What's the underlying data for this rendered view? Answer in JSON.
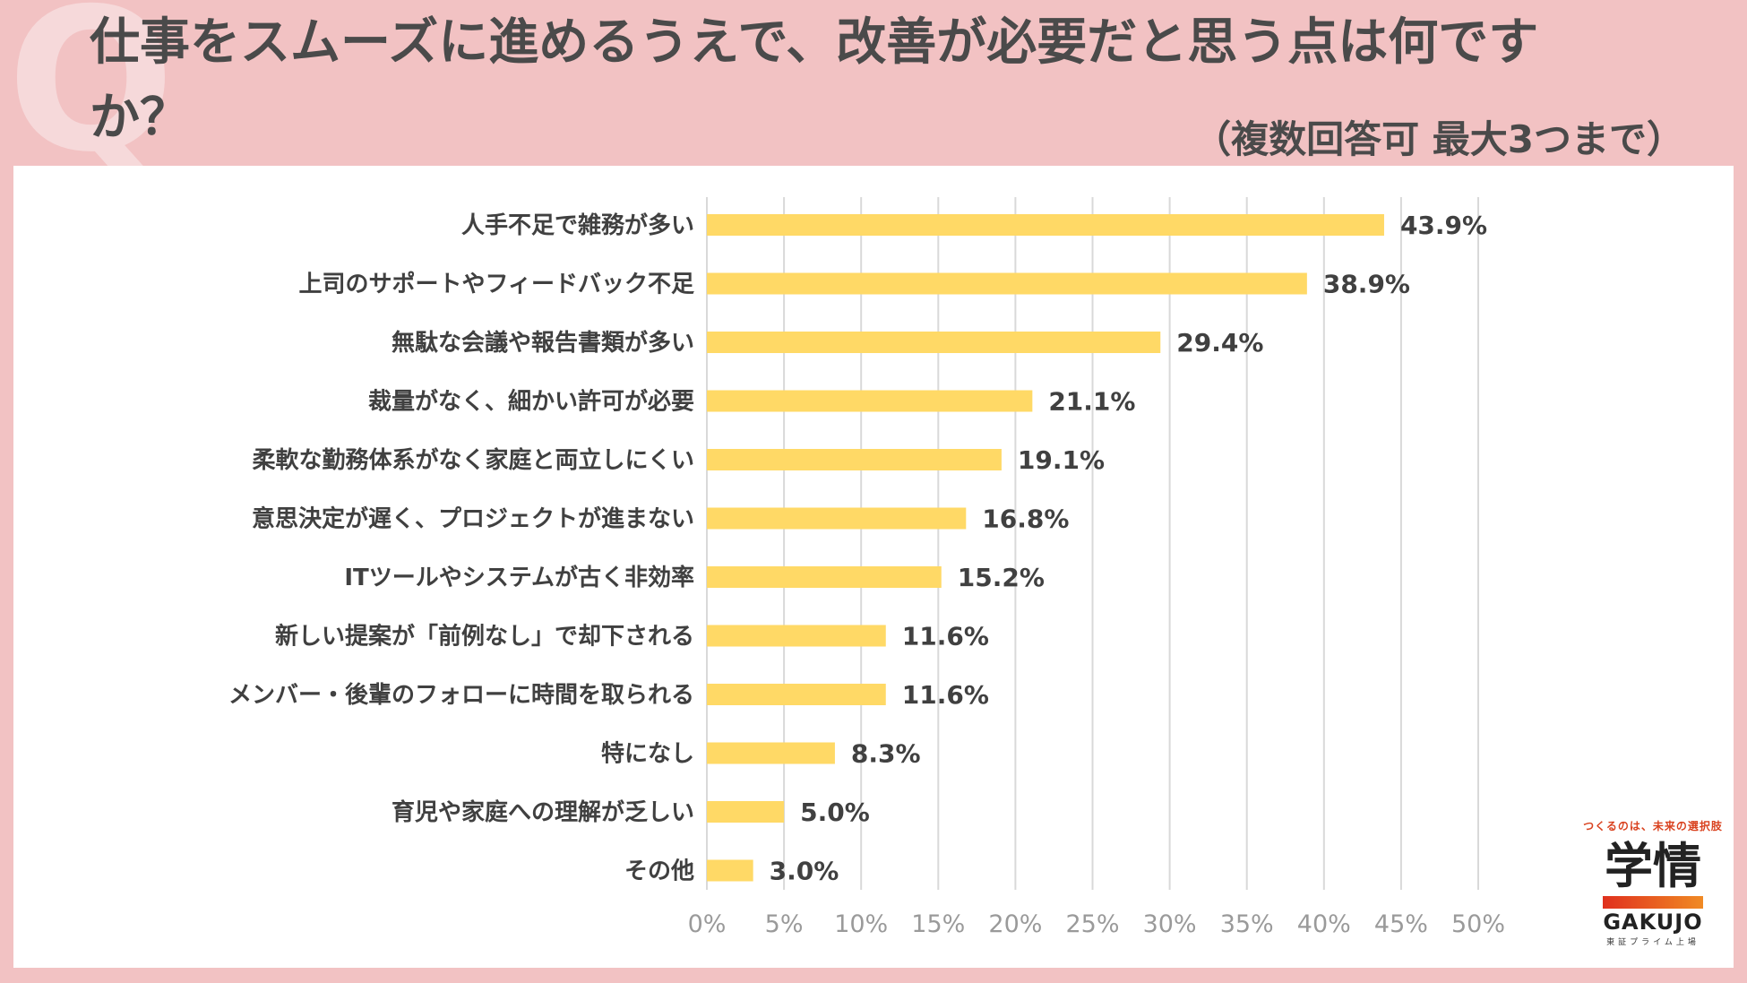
{
  "page": {
    "title": "仕事をスムーズに進めるうえで、改善が必要だと思う点は何ですか？",
    "subtitle": "（複数回答可 最大3つまで）",
    "q_mark": "Q"
  },
  "logo": {
    "tagline": "つくるのは、未来の選択肢",
    "name_jp": "学情",
    "name_en": "GAKUJO",
    "listing": "東証プライム上場"
  },
  "colors": {
    "background": "#f2c2c3",
    "bar": "#ffd966",
    "grid": "#d9d9d9"
  },
  "chart_data": {
    "type": "bar",
    "orientation": "horizontal",
    "title": "",
    "xlabel": "",
    "ylabel": "",
    "xlim": [
      0,
      50
    ],
    "tick_step": 5,
    "tick_suffix": "%",
    "grid": true,
    "categories": [
      "人手不足で雑務が多い",
      "上司のサポートやフィードバック不足",
      "無駄な会議や報告書類が多い",
      "裁量がなく、細かい許可が必要",
      "柔軟な勤務体系がなく家庭と両立しにくい",
      "意思決定が遅く、プロジェクトが進まない",
      "ITツールやシステムが古く非効率",
      "新しい提案が「前例なし」で却下される",
      "メンバー・後輩のフォローに時間を取られる",
      "特になし",
      "育児や家庭への理解が乏しい",
      "その他"
    ],
    "values": [
      43.9,
      38.9,
      29.4,
      21.1,
      19.1,
      16.8,
      15.2,
      11.6,
      11.6,
      8.3,
      5.0,
      3.0
    ],
    "value_labels": [
      "43.9%",
      "38.9%",
      "29.4%",
      "21.1%",
      "19.1%",
      "16.8%",
      "15.2%",
      "11.6%",
      "11.6%",
      "8.3%",
      "5.0%",
      "3.0%"
    ]
  }
}
